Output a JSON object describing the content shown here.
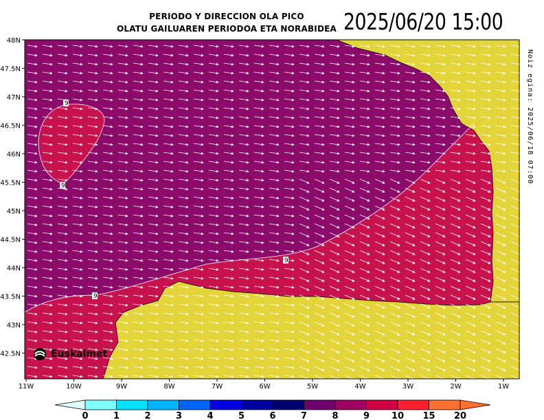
{
  "header": {
    "title_line1": "PERIODO Y DIRECCION OLA PICO",
    "title_line2": "OLATU GAILUAREN PERIODOA ETA NORABIDEA",
    "valid_datetime": "2025/06/20 15:00",
    "run_label": "Noiz egina: 2025/06/18 07:00"
  },
  "axes": {
    "lat_labels": [
      "48N",
      "47.5N",
      "47N",
      "46.5N",
      "46N",
      "45.5N",
      "45N",
      "44.5N",
      "44N",
      "43.5N",
      "43N",
      "42.5N"
    ],
    "lon_labels": [
      "11W",
      "10W",
      "9W",
      "8W",
      "7W",
      "6W",
      "5W",
      "4W",
      "3W",
      "2W",
      "1W"
    ]
  },
  "contour_labels": [
    "9",
    "9",
    "9",
    "9"
  ],
  "legend": {
    "values": [
      "0",
      "1",
      "2",
      "3",
      "4",
      "5",
      "6",
      "7",
      "8",
      "9",
      "10",
      "15",
      "20"
    ],
    "colors": [
      "#e0ffff",
      "#80ffff",
      "#00e0ff",
      "#00b4ff",
      "#0064ff",
      "#0000e0",
      "#0000a0",
      "#000070",
      "#700070",
      "#a00060",
      "#d00040",
      "#ff2030",
      "#ff7030"
    ]
  },
  "map_colors": {
    "period_8_9": "#8b0a6a",
    "period_9_10": "#c8124e",
    "land": "#e3d43a",
    "arrow": "#ffffff"
  },
  "logo": {
    "text": "Euskalmet",
    "icon": "euskalmet-logo-icon"
  }
}
